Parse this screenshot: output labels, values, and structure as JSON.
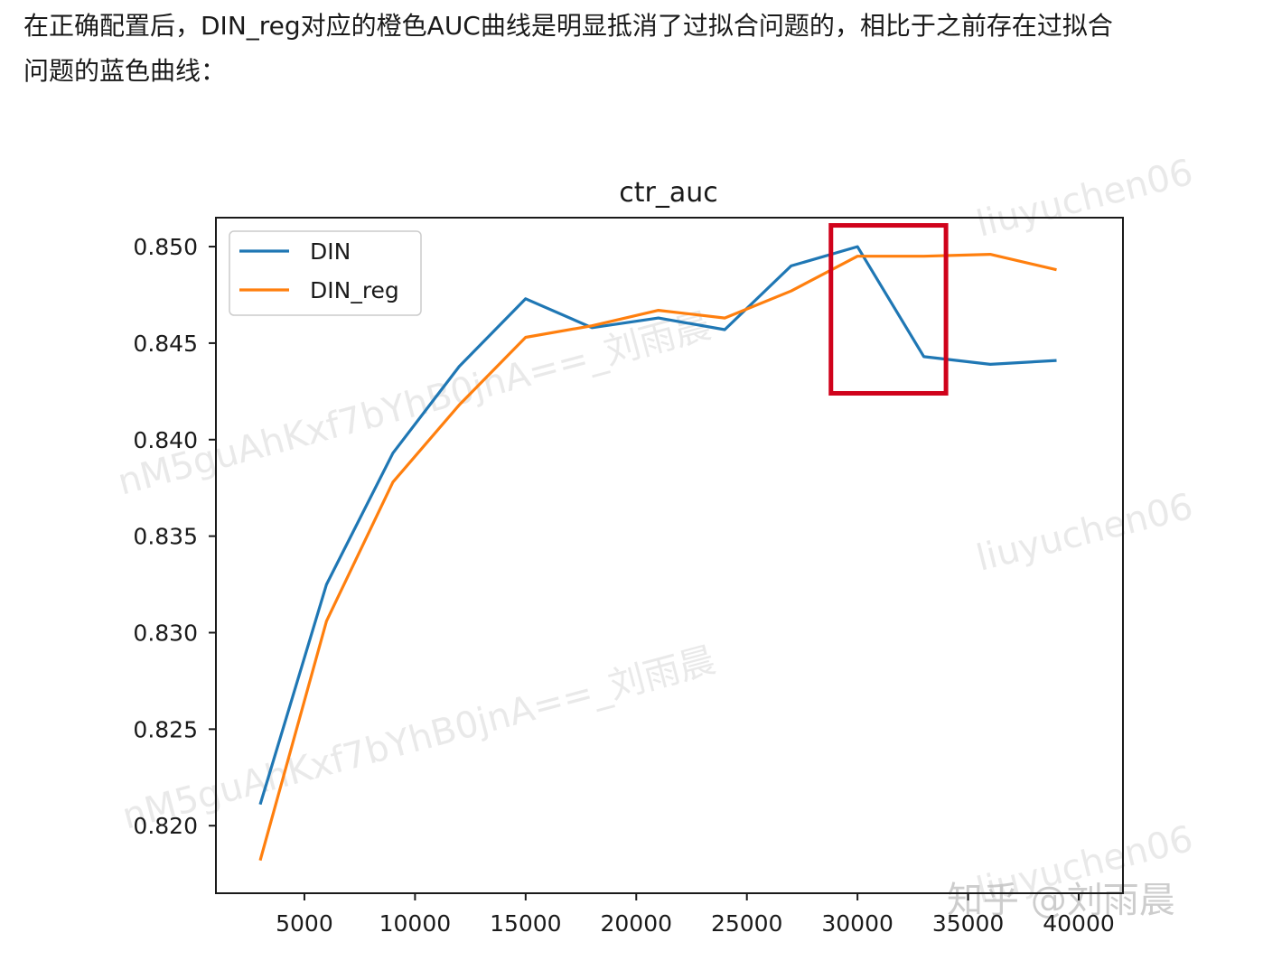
{
  "caption": {
    "line1": "在正确配置后，DIN_reg对应的橙色AUC曲线是明显抵消了过拟合问题的，相比于之前存在过拟合",
    "line2": "问题的蓝色曲线："
  },
  "chart_data": {
    "type": "line",
    "title": "ctr_auc",
    "xlabel": "",
    "ylabel": "",
    "xlim": [
      1000,
      42000
    ],
    "ylim": [
      0.8165,
      0.8515
    ],
    "xticks": [
      5000,
      10000,
      15000,
      20000,
      25000,
      30000,
      35000,
      40000
    ],
    "yticks": [
      0.82,
      0.825,
      0.83,
      0.835,
      0.84,
      0.845,
      0.85
    ],
    "grid": false,
    "legend_position": "top-left",
    "series": [
      {
        "name": "DIN",
        "color": "#1f77b4",
        "x": [
          3000,
          6000,
          9000,
          12000,
          15000,
          18000,
          21000,
          24000,
          27000,
          30000,
          33000,
          36000,
          39000
        ],
        "values": [
          0.8211,
          0.8325,
          0.8393,
          0.8438,
          0.8473,
          0.8458,
          0.8463,
          0.8457,
          0.849,
          0.85,
          0.8443,
          0.8439,
          0.8441
        ]
      },
      {
        "name": "DIN_reg",
        "color": "#ff7f0e",
        "x": [
          3000,
          6000,
          9000,
          12000,
          15000,
          18000,
          21000,
          24000,
          27000,
          30000,
          33000,
          36000,
          39000
        ],
        "values": [
          0.8182,
          0.8306,
          0.8378,
          0.8418,
          0.8453,
          0.8459,
          0.8467,
          0.8463,
          0.8477,
          0.8495,
          0.8495,
          0.8496,
          0.8488
        ]
      }
    ],
    "annotation": {
      "type": "rectangle",
      "color": "#d0021b",
      "x_range": [
        28800,
        34000
      ],
      "y_range": [
        0.8424,
        0.8511
      ]
    },
    "watermarks": [
      "liuyuchen06",
      "nM5guAhKxf7bYhB0jnA==_刘雨晨",
      "liuyuchen06",
      "nM5guAhKxf7bYhB0jnA==_刘雨晨",
      "liuyuchen06",
      "知乎 @刘雨晨"
    ]
  }
}
